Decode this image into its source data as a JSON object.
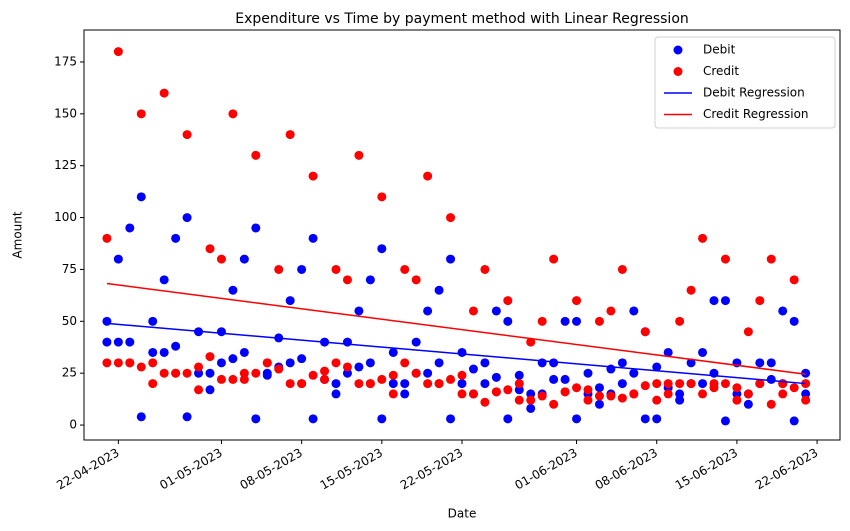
{
  "chart_data": {
    "type": "scatter",
    "title": "Expenditure vs Time by payment method with Linear Regression",
    "xlabel": "Date",
    "ylabel": "Amount",
    "xlim": [
      "19-04-2023",
      "24-06-2023"
    ],
    "xticks": [
      "22-04-2023",
      "01-05-2023",
      "08-05-2023",
      "15-05-2023",
      "22-05-2023",
      "01-06-2023",
      "08-06-2023",
      "15-06-2023",
      "22-06-2023"
    ],
    "ylim": [
      -7.2,
      190.4
    ],
    "yticks": [
      0,
      25,
      50,
      75,
      100,
      125,
      150,
      175
    ],
    "legend": "upper right",
    "series": [
      {
        "name": "Debit",
        "type": "scatter",
        "color": "#0000ff",
        "x": [
          "21-04-2023",
          "22-04-2023",
          "23-04-2023",
          "24-04-2023",
          "25-04-2023",
          "26-04-2023",
          "27-04-2023",
          "28-04-2023",
          "29-04-2023",
          "30-04-2023",
          "01-05-2023",
          "02-05-2023",
          "03-05-2023",
          "04-05-2023",
          "05-05-2023",
          "06-05-2023",
          "07-05-2023",
          "08-05-2023",
          "09-05-2023",
          "10-05-2023",
          "11-05-2023",
          "12-05-2023",
          "13-05-2023",
          "14-05-2023",
          "15-05-2023",
          "16-05-2023",
          "17-05-2023",
          "18-05-2023",
          "19-05-2023",
          "20-05-2023",
          "21-05-2023",
          "22-05-2023",
          "23-05-2023",
          "24-05-2023",
          "25-05-2023",
          "26-05-2023",
          "27-05-2023",
          "28-05-2023",
          "29-05-2023",
          "30-05-2023",
          "31-05-2023",
          "01-06-2023",
          "02-06-2023",
          "03-06-2023",
          "04-06-2023",
          "05-06-2023",
          "06-06-2023",
          "07-06-2023",
          "08-06-2023",
          "09-06-2023",
          "10-06-2023",
          "11-06-2023",
          "12-06-2023",
          "13-06-2023",
          "14-06-2023",
          "15-06-2023",
          "16-06-2023",
          "17-06-2023",
          "18-06-2023",
          "19-06-2023",
          "20-06-2023",
          "21-06-2023"
        ],
        "values": [
          [
            50,
            40
          ],
          [
            80,
            40
          ],
          [
            95,
            40
          ],
          [
            110,
            4
          ],
          [
            50,
            35
          ],
          [
            70,
            35
          ],
          [
            90,
            38
          ],
          [
            100,
            4
          ],
          [
            45,
            25
          ],
          [
            25,
            17
          ],
          [
            45,
            30
          ],
          [
            65,
            32
          ],
          [
            80,
            35
          ],
          [
            95,
            3
          ],
          [
            25,
            24
          ],
          [
            42,
            28
          ],
          [
            60,
            30
          ],
          [
            75,
            32
          ],
          [
            90,
            3
          ],
          [
            40,
            22
          ],
          [
            20,
            15
          ],
          [
            40,
            25
          ],
          [
            55,
            28
          ],
          [
            70,
            30
          ],
          [
            85,
            3
          ],
          [
            35,
            20
          ],
          [
            20,
            15
          ],
          [
            40,
            25
          ],
          [
            55,
            25
          ],
          [
            65,
            30
          ],
          [
            80,
            3
          ],
          [
            35,
            20
          ],
          [
            27,
            15
          ],
          [
            30,
            20
          ],
          [
            55,
            23
          ],
          [
            50,
            3
          ],
          [
            24,
            17
          ],
          [
            15,
            8
          ],
          [
            30,
            15
          ],
          [
            30,
            22
          ],
          [
            50,
            22
          ],
          [
            50,
            3
          ],
          [
            25,
            15
          ],
          [
            10,
            18
          ],
          [
            27,
            15
          ],
          [
            30,
            20
          ],
          [
            55,
            25
          ],
          [
            45,
            3
          ],
          [
            28,
            3
          ],
          [
            35,
            18
          ],
          [
            15,
            12
          ],
          [
            30,
            20
          ],
          [
            35,
            20
          ],
          [
            60,
            25
          ],
          [
            60,
            2
          ],
          [
            30,
            15
          ],
          [
            10,
            15
          ],
          [
            30,
            20
          ],
          [
            30,
            22
          ],
          [
            55,
            20
          ],
          [
            50,
            2
          ],
          [
            25,
            15
          ]
        ]
      },
      {
        "name": "Credit",
        "type": "scatter",
        "color": "#ff0000",
        "x": [
          "21-04-2023",
          "22-04-2023",
          "23-04-2023",
          "24-04-2023",
          "25-04-2023",
          "26-04-2023",
          "27-04-2023",
          "28-04-2023",
          "29-04-2023",
          "30-04-2023",
          "01-05-2023",
          "02-05-2023",
          "03-05-2023",
          "04-05-2023",
          "05-05-2023",
          "06-05-2023",
          "07-05-2023",
          "08-05-2023",
          "09-05-2023",
          "10-05-2023",
          "11-05-2023",
          "12-05-2023",
          "13-05-2023",
          "14-05-2023",
          "15-05-2023",
          "16-05-2023",
          "17-05-2023",
          "18-05-2023",
          "19-05-2023",
          "20-05-2023",
          "21-05-2023",
          "22-05-2023",
          "23-05-2023",
          "24-05-2023",
          "25-05-2023",
          "26-05-2023",
          "27-05-2023",
          "28-05-2023",
          "29-05-2023",
          "30-05-2023",
          "31-05-2023",
          "01-06-2023",
          "02-06-2023",
          "03-06-2023",
          "04-06-2023",
          "05-06-2023",
          "06-06-2023",
          "07-06-2023",
          "08-06-2023",
          "09-06-2023",
          "10-06-2023",
          "11-06-2023",
          "12-06-2023",
          "13-06-2023",
          "14-06-2023",
          "15-06-2023",
          "16-06-2023",
          "17-06-2023",
          "18-06-2023",
          "19-06-2023",
          "20-06-2023",
          "21-06-2023"
        ],
        "values": [
          [
            90,
            30
          ],
          [
            180,
            30
          ],
          [
            30,
            30
          ],
          [
            150,
            28
          ],
          [
            30,
            20
          ],
          [
            160,
            25
          ],
          [
            25,
            25
          ],
          [
            140,
            25
          ],
          [
            28,
            17
          ],
          [
            85,
            33
          ],
          [
            80,
            22
          ],
          [
            150,
            22
          ],
          [
            22,
            25
          ],
          [
            130,
            25
          ],
          [
            30,
            30
          ],
          [
            75,
            27
          ],
          [
            140,
            20
          ],
          [
            20,
            20
          ],
          [
            120,
            24
          ],
          [
            26,
            22
          ],
          [
            75,
            30
          ],
          [
            70,
            28
          ],
          [
            130,
            20
          ],
          [
            20,
            20
          ],
          [
            110,
            22
          ],
          [
            24,
            15
          ],
          [
            75,
            30
          ],
          [
            70,
            25
          ],
          [
            120,
            20
          ],
          [
            20,
            20
          ],
          [
            100,
            22
          ],
          [
            24,
            15
          ],
          [
            55,
            15
          ],
          [
            75,
            11
          ],
          [
            16,
            16
          ],
          [
            60,
            17
          ],
          [
            20,
            12
          ],
          [
            40,
            12
          ],
          [
            50,
            14
          ],
          [
            80,
            10
          ],
          [
            16,
            16
          ],
          [
            60,
            18
          ],
          [
            17,
            12
          ],
          [
            50,
            14
          ],
          [
            55,
            14
          ],
          [
            75,
            13
          ],
          [
            15,
            15
          ],
          [
            45,
            19
          ],
          [
            20,
            12
          ],
          [
            20,
            15
          ],
          [
            50,
            20
          ],
          [
            65,
            20
          ],
          [
            90,
            15
          ],
          [
            20,
            18
          ],
          [
            80,
            20
          ],
          [
            18,
            12
          ],
          [
            45,
            15
          ],
          [
            60,
            20
          ],
          [
            80,
            10
          ],
          [
            15,
            20
          ],
          [
            70,
            18
          ],
          [
            20,
            12
          ]
        ]
      },
      {
        "name": "Debit Regression",
        "type": "line",
        "color": "#0000ff",
        "x": [
          "21-04-2023",
          "21-06-2023"
        ],
        "values": [
          49,
          20
        ]
      },
      {
        "name": "Credit Regression",
        "type": "line",
        "color": "#ff0000",
        "x": [
          "21-04-2023",
          "21-06-2023"
        ],
        "values": [
          68.2,
          24.5
        ]
      }
    ]
  }
}
